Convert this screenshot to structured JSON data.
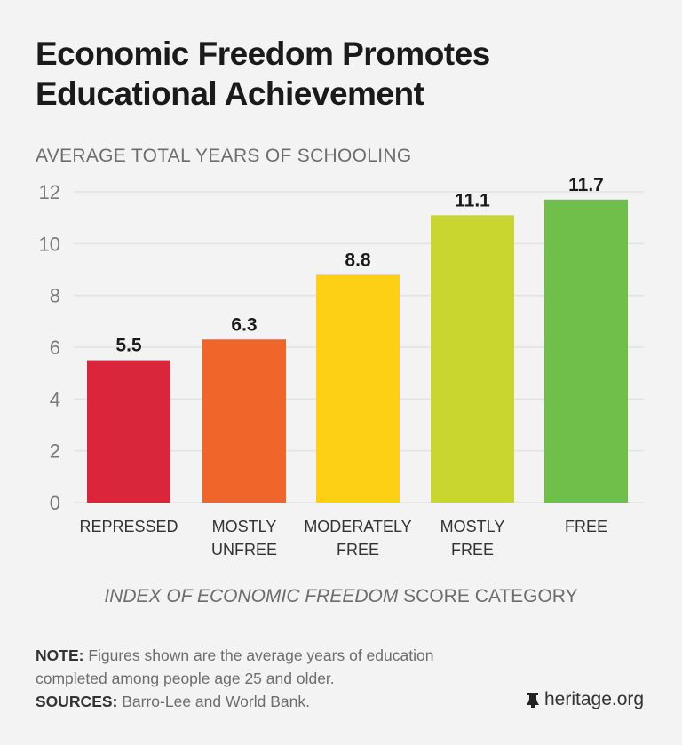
{
  "title_lines": [
    "Economic Freedom Promotes",
    "Educational Achievement"
  ],
  "note_label": "NOTE:",
  "note_text": " Figures shown are the average years of education completed among people age 25 and older.",
  "sources_label": "SOURCES:",
  "sources_text": " Barro-Lee and World Bank.",
  "logo_text": "heritage.org",
  "chart_data": {
    "type": "bar",
    "title": "Economic Freedom Promotes Educational Achievement",
    "ylabel": "AVERAGE TOTAL YEARS OF SCHOOLING",
    "xlabel_italic": "INDEX OF ECONOMIC FREEDOM",
    "xlabel_rest": " SCORE CATEGORY",
    "categories": [
      [
        "REPRESSED"
      ],
      [
        "MOSTLY",
        "UNFREE"
      ],
      [
        "MODERATELY",
        "FREE"
      ],
      [
        "MOSTLY",
        "FREE"
      ],
      [
        "FREE"
      ]
    ],
    "values": [
      5.5,
      6.3,
      8.8,
      11.1,
      11.7
    ],
    "data_labels": [
      "5.5",
      "6.3",
      "8.8",
      "11.1",
      "11.7"
    ],
    "colors": [
      "#d9263a",
      "#f0662a",
      "#fdd015",
      "#c9d630",
      "#6fbf4a"
    ],
    "ylim": [
      0,
      12
    ],
    "yticks": [
      0,
      2,
      4,
      6,
      8,
      10,
      12
    ],
    "grid": true,
    "legend": "none"
  }
}
